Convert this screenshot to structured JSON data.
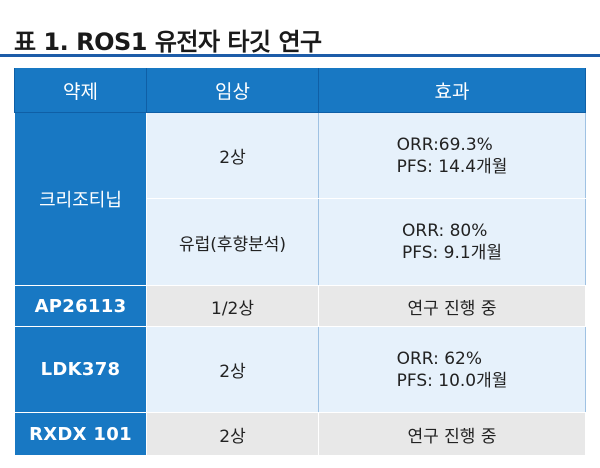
{
  "title": "표 1. ROS1 유전자 타깃 연구",
  "table": {
    "headers": [
      "약제",
      "임상",
      "효과"
    ],
    "rows": [
      {
        "drug": "크리조티닙",
        "phase": "2상",
        "effect": [
          "ORR:69.3%",
          "PFS: 14.4개월"
        ]
      },
      {
        "drug": "",
        "phase": "유럽(후향분석)",
        "effect": [
          "ORR: 80%",
          "PFS: 9.1개월"
        ]
      },
      {
        "drug": "AP26113",
        "phase": "1/2상",
        "effect": [
          "연구 진행 중"
        ]
      },
      {
        "drug": "LDK378",
        "phase": "2상",
        "effect": [
          "ORR: 62%",
          "PFS: 10.0개월"
        ]
      },
      {
        "drug": "RXDX 101",
        "phase": "2상",
        "effect": [
          "연구 진행 중"
        ]
      }
    ]
  },
  "colors": {
    "header_blue": "#1878c3",
    "row_light_blue": "#e6f1fb",
    "row_grey": "#e8e8e8",
    "rule_blue": "#1d5ca8"
  }
}
